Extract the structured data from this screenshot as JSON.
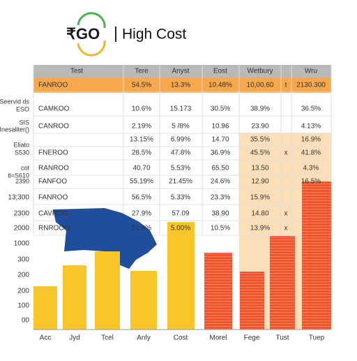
{
  "header": {
    "logo": "₹GO",
    "title": "High Cost"
  },
  "table": {
    "columns": [
      "Test",
      "Tere",
      "Anyst",
      "Eost",
      "Wetbury",
      null,
      "Wru"
    ],
    "rows": [
      [
        "FANROO",
        "54.5%",
        "13.3%",
        "10.48%",
        "10,00.60",
        "t",
        "2130.300"
      ],
      [
        "CAMKOO",
        "10.6%",
        "15.173",
        "30.5%",
        "38.9%",
        null,
        "36.5%"
      ],
      [
        "CANROO",
        "2.19%",
        "5 /8%",
        "10.96",
        "23.90",
        null,
        "4.13%"
      ],
      [
        null,
        "13.15%",
        "6.99%",
        "14.70",
        "35.5%",
        null,
        "16.9%"
      ],
      [
        "FNEROO",
        "28.5%",
        "47.8%",
        "36.9%",
        "45.5%",
        "x",
        "41.8%"
      ],
      [
        "RANROO",
        "40.70",
        "5.53%",
        "65.50",
        "13.50",
        null,
        "4.3%"
      ],
      [
        "FANFOO",
        "55.19%",
        "21.45%",
        "24.6%",
        "12.90",
        null,
        "16.5%"
      ],
      [
        "FANROO",
        "56.5%",
        "5.33%",
        "23.3%",
        "15.9%",
        null,
        null
      ],
      [
        "CAVROO",
        "27.9%",
        "57.09",
        "38.90",
        "14.80",
        "x",
        null
      ],
      [
        "RNROOO",
        "51.8%",
        "5.00%",
        "10.5%",
        "13.9%",
        "x",
        null
      ]
    ]
  },
  "side_labels": [
    "Seervid ds",
    "ESO",
    "SIS",
    "Inesaliter()",
    "Eliato",
    "S530",
    "cot",
    "tl=S610",
    "2390"
  ],
  "axis_labels": [
    "13;300",
    "2300",
    "2000",
    "1000",
    "300",
    "200",
    "200",
    "100",
    "00"
  ],
  "bar_categories": [
    "Acc",
    "Jyd",
    "Tcel",
    "Anly",
    "Cost",
    "Morel",
    "Fege",
    "Tust",
    "Tuep"
  ]
}
